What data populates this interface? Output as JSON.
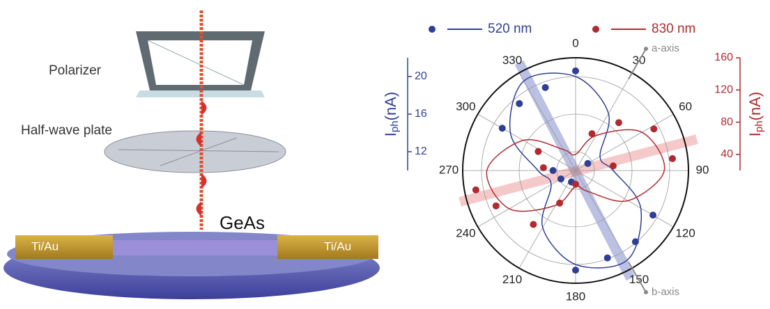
{
  "schematic": {
    "polarizer": "Polarizer",
    "waveplate": "Half-wave plate",
    "material": "GeAs",
    "contact_left": "Ti/Au",
    "contact_right": "Ti/Au"
  },
  "chart_data": {
    "type": "polar",
    "legend": "top",
    "thetaticks": [
      0,
      30,
      60,
      90,
      120,
      150,
      180,
      210,
      240,
      270,
      300,
      330
    ],
    "ylabel": [
      "I",
      "ph",
      "(nA)"
    ],
    "ylim": [
      10,
      22
    ],
    "yticks": [
      12,
      16,
      20
    ],
    "y2label": [
      "I",
      "ph",
      "(nA)"
    ],
    "y2lim": [
      20,
      160
    ],
    "y2ticks": [
      40,
      80,
      120,
      160
    ],
    "annotations": [
      {
        "text": "a-axis",
        "theta": 30
      },
      {
        "text": "b-axis",
        "theta": 150
      }
    ],
    "series": [
      {
        "name": "520 nm",
        "color": "#2f3f95",
        "axis": "y",
        "theta": [
          0,
          60,
          120,
          140,
          160,
          180,
          200,
          240,
          270,
          300,
          320,
          340
        ],
        "values": [
          20.6,
          11.5,
          19.5,
          19.9,
          19.9,
          20.6,
          11.3,
          11.8,
          12.4,
          19.0,
          19.3,
          19.4
        ],
        "fit_theta": [
          0,
          30,
          60,
          90,
          120,
          150,
          180,
          210,
          240,
          270,
          300,
          330
        ],
        "fit_values": [
          20,
          17,
          13,
          14,
          18,
          21,
          20,
          17,
          13,
          14,
          18,
          21
        ]
      },
      {
        "name": "830 nm",
        "color": "#b02a30",
        "axis": "y2",
        "theta": [
          24,
          42,
          62,
          83,
          83,
          180,
          206,
          218,
          246,
          259,
          275,
          297
        ],
        "values": [
          70,
          100,
          130,
          141,
          67,
          37,
          65,
          105,
          128,
          146,
          60,
          72
        ],
        "fit_theta": [
          0,
          30,
          60,
          90,
          120,
          150,
          180,
          210,
          240,
          270,
          300,
          330
        ],
        "fit_values": [
          40,
          70,
          115,
          130,
          95,
          50,
          40,
          70,
          115,
          130,
          95,
          50
        ]
      }
    ]
  }
}
